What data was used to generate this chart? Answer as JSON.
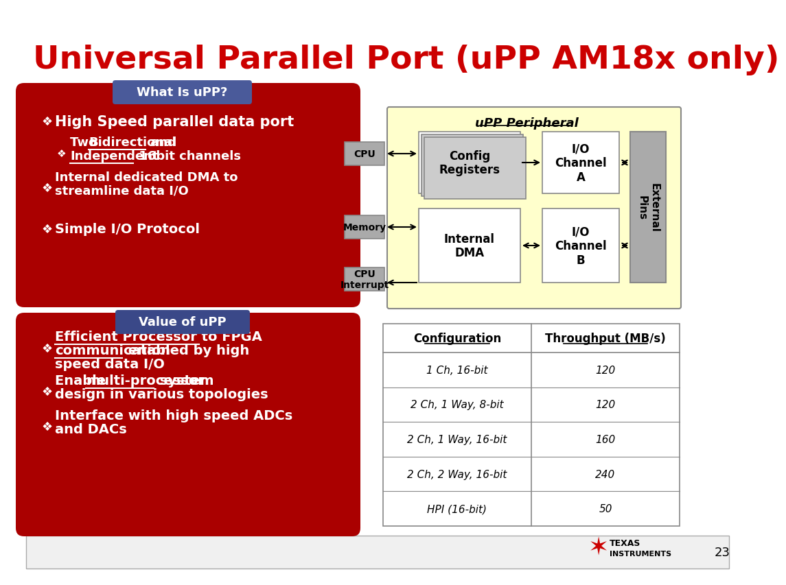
{
  "title": "Universal Parallel Port (uPP AM18x only)",
  "title_color": "#CC0000",
  "bg_color": "#FFFFFF",
  "what_label": "What Is uPP?",
  "value_label": "Value of uPP",
  "label_bg1": "#4A5A9A",
  "label_bg2": "#3A4888",
  "label_fg": "#FFFFFF",
  "red_color": "#AA0000",
  "diagram_bg": "#FFFFCC",
  "gray_box": "#AAAAAA",
  "white_box": "#FFFFFF",
  "table_cols": [
    "Configuration",
    "Throughput (MB/s)"
  ],
  "table_rows": [
    [
      "1 Ch, 16-bit",
      "120"
    ],
    [
      "2 Ch, 1 Way, 8-bit",
      "120"
    ],
    [
      "2 Ch, 1 Way, 16-bit",
      "160"
    ],
    [
      "2 Ch, 2 Way, 16-bit",
      "240"
    ],
    [
      "HPI (16-bit)",
      "50"
    ]
  ],
  "footer_bg": "#F0F0F0",
  "footer_border": "#AAAAAA",
  "page_num": "23",
  "ti_color": "#CC0000"
}
